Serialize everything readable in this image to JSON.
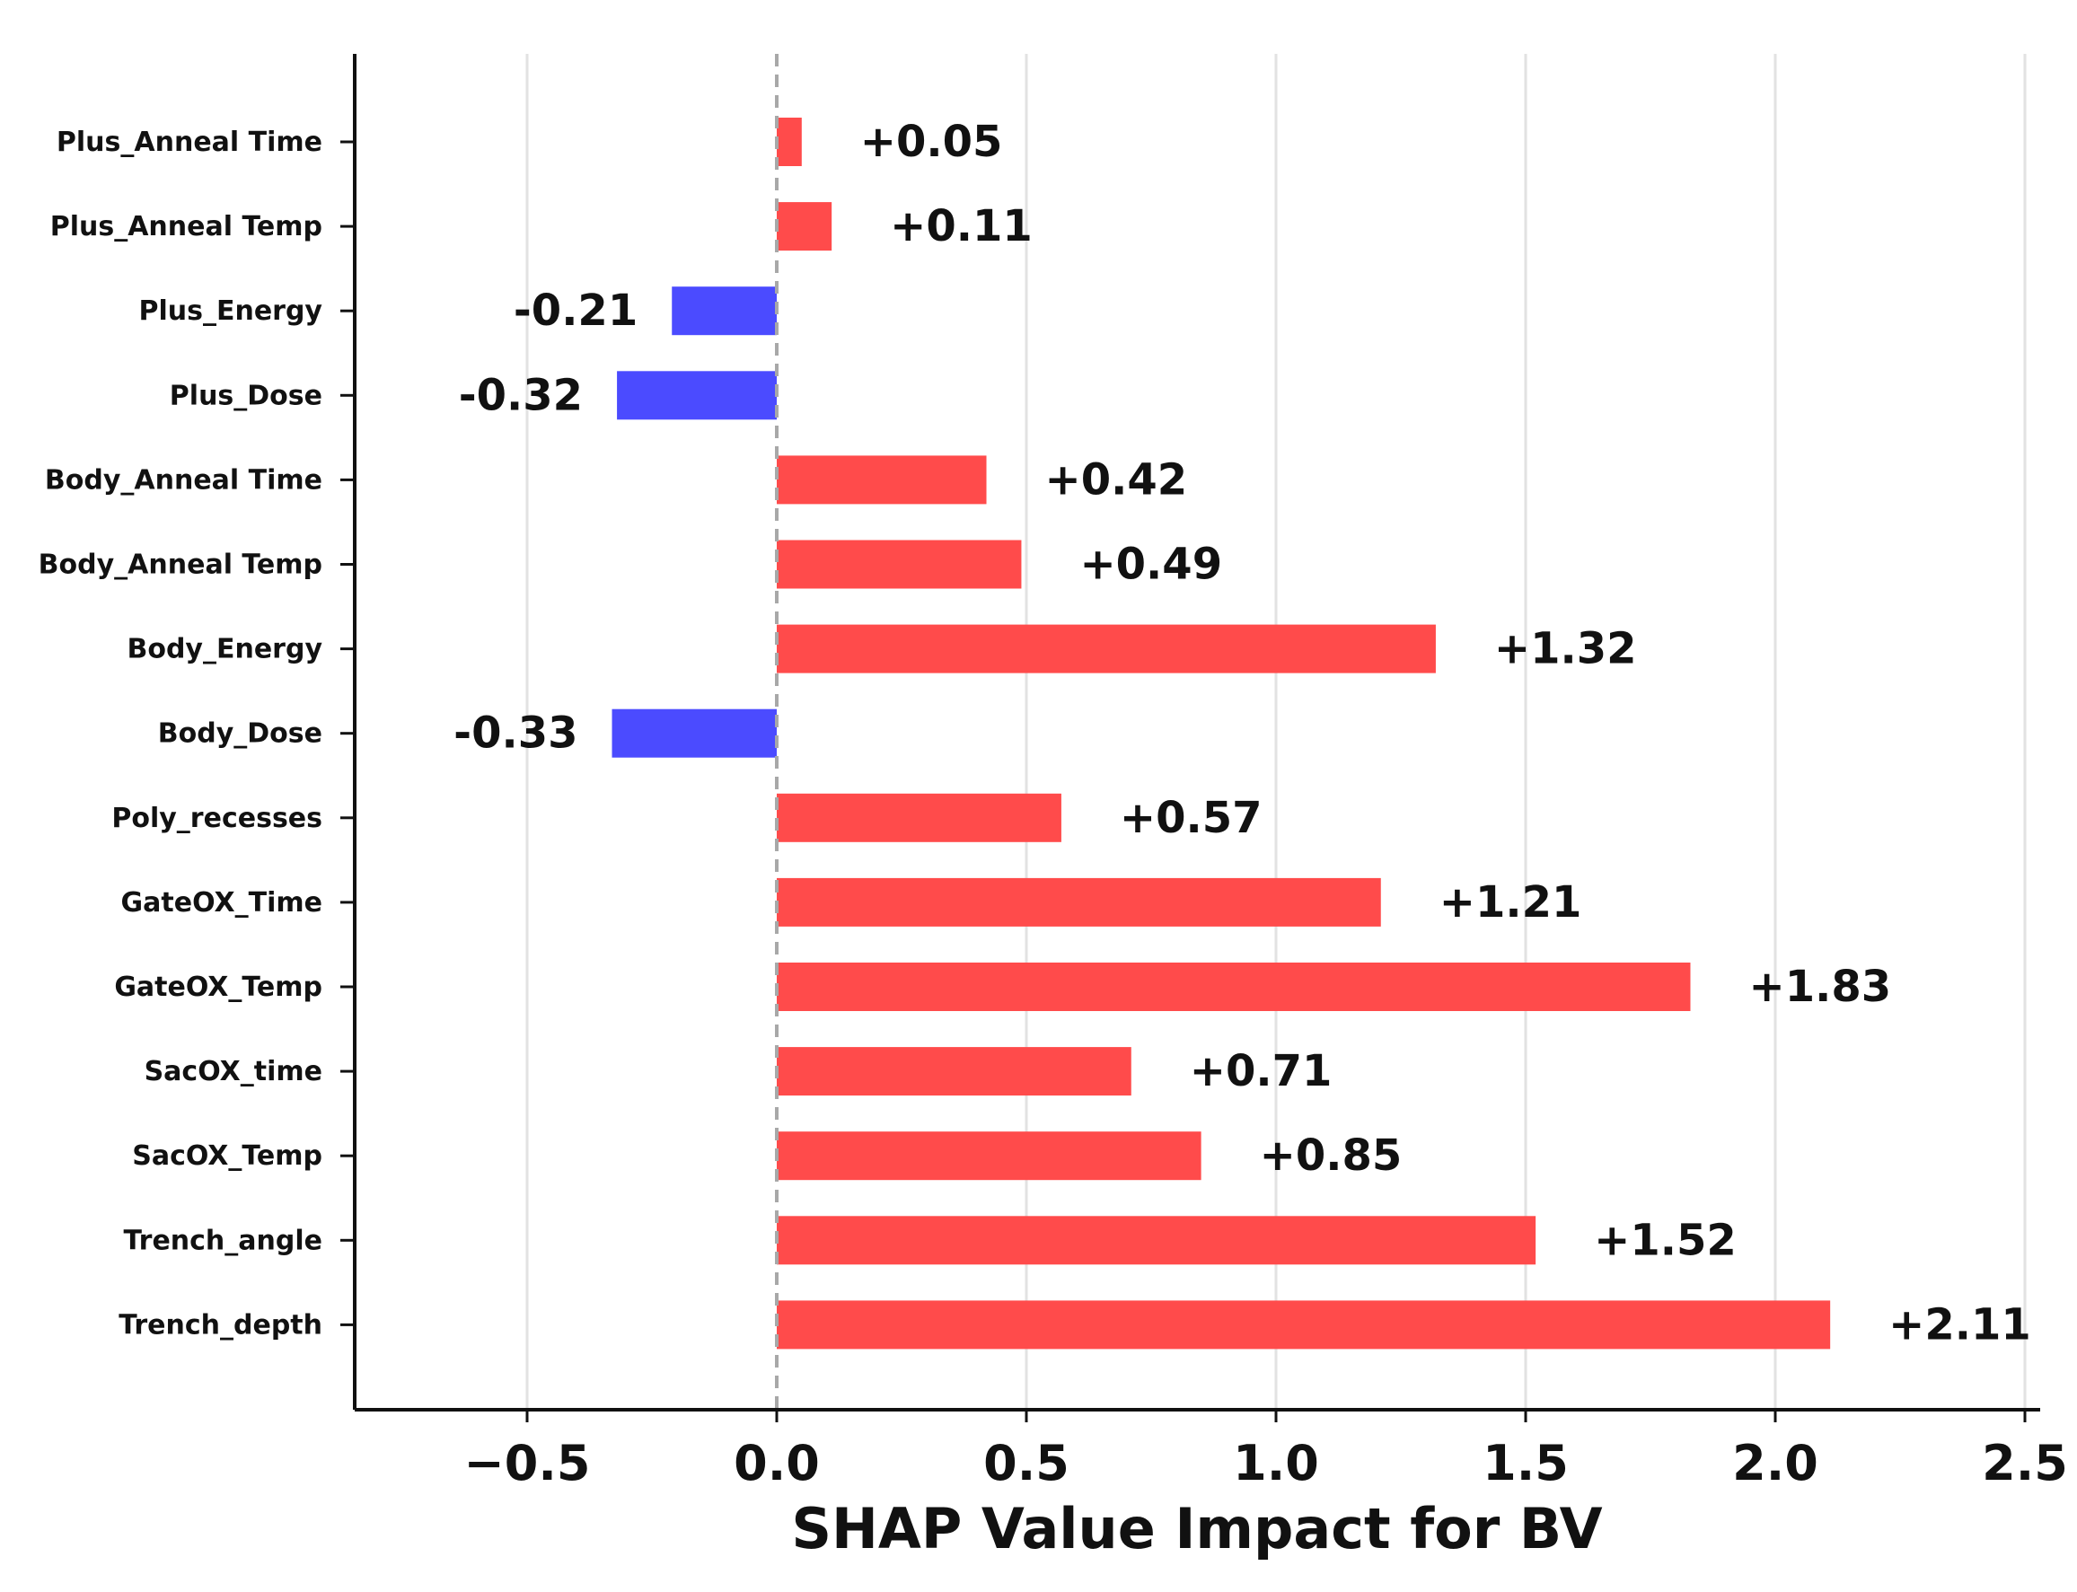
{
  "chart_data": {
    "type": "bar",
    "orientation": "horizontal",
    "xlabel": "SHAP Value Impact for BV",
    "ylabel": "",
    "title": "",
    "xlim": [
      -0.85,
      2.52
    ],
    "xticks": [
      -0.5,
      0.0,
      0.5,
      1.0,
      1.5,
      2.0,
      2.5
    ],
    "xtick_labels": [
      "−0.5",
      "0.0",
      "0.5",
      "1.0",
      "1.5",
      "2.0",
      "2.5"
    ],
    "grid": "vertical",
    "reference_line": 0.0,
    "colors": {
      "positive": "#ff4b4b",
      "negative": "#4b4bff",
      "grid": "#e2e2e2",
      "zero_line": "#a8a8a8"
    },
    "categories": [
      "Plus_Anneal Time",
      "Plus_Anneal Temp",
      "Plus_Energy",
      "Plus_Dose",
      "Body_Anneal Time",
      "Body_Anneal Temp",
      "Body_Energy",
      "Body_Dose",
      "Poly_recesses",
      "GateOX_Time",
      "GateOX_Temp",
      "SacOX_time",
      "SacOX_Temp",
      "Trench_angle",
      "Trench_depth"
    ],
    "values": [
      0.05,
      0.11,
      -0.21,
      -0.32,
      0.42,
      0.49,
      1.32,
      -0.33,
      0.57,
      1.21,
      1.83,
      0.71,
      0.85,
      1.52,
      2.11
    ],
    "value_labels": [
      "+0.05",
      "+0.11",
      "-0.21",
      "-0.32",
      "+0.42",
      "+0.49",
      "+1.32",
      "-0.33",
      "+0.57",
      "+1.21",
      "+1.83",
      "+0.71",
      "+0.85",
      "+1.52",
      "+2.11"
    ]
  }
}
